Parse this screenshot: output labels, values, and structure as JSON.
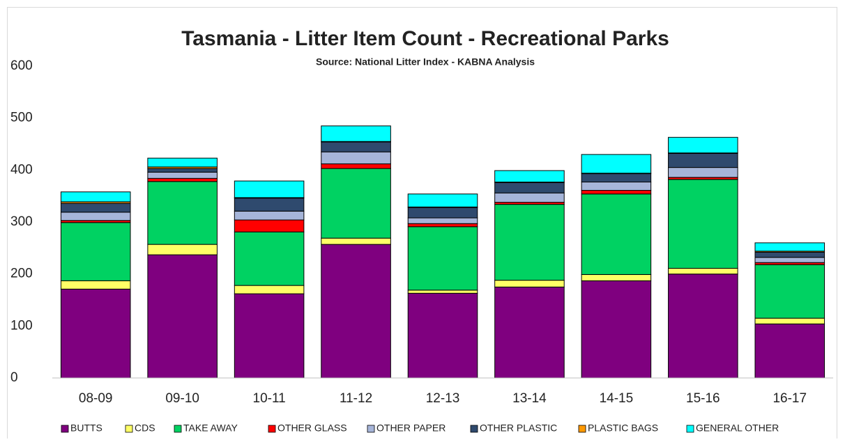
{
  "chart_data": {
    "type": "stacked_bar",
    "title": "Tasmania - Litter Item Count - Recreational Parks",
    "subtitle": "Source: National Litter Index - KABNA Analysis",
    "categories": [
      "08-09",
      "09-10",
      "10-11",
      "11-12",
      "12-13",
      "13-14",
      "14-15",
      "15-16",
      "16-17"
    ],
    "series": [
      {
        "name": "BUTTS",
        "color": "#7f007f",
        "values": [
          171,
          237,
          162,
          257,
          163,
          175,
          187,
          200,
          104
        ]
      },
      {
        "name": "CDS",
        "color": "#ffff66",
        "values": [
          16,
          20,
          16,
          12,
          6,
          13,
          12,
          11,
          11
        ]
      },
      {
        "name": "TAKE AWAY",
        "color": "#00d262",
        "values": [
          112,
          121,
          103,
          134,
          122,
          146,
          155,
          171,
          103
        ]
      },
      {
        "name": "OTHER GLASS",
        "color": "#ff0000",
        "values": [
          4,
          6,
          23,
          9,
          6,
          4,
          7,
          4,
          4
        ]
      },
      {
        "name": "OTHER PAPER",
        "color": "#a6b5d9",
        "values": [
          16,
          12,
          17,
          23,
          11,
          18,
          16,
          19,
          10
        ]
      },
      {
        "name": "OTHER PLASTIC",
        "color": "#2f4a6e",
        "values": [
          17,
          7,
          25,
          19,
          20,
          20,
          16,
          27,
          10
        ]
      },
      {
        "name": "PLASTIC BAGS",
        "color": "#ff9900",
        "values": [
          3,
          3,
          1,
          1,
          1,
          1,
          1,
          1,
          2
        ]
      },
      {
        "name": "GENERAL OTHER",
        "color": "#00ffff",
        "values": [
          19,
          17,
          32,
          30,
          25,
          22,
          36,
          30,
          16
        ]
      }
    ],
    "ylim": [
      0,
      600
    ],
    "yticks": [
      0,
      100,
      200,
      300,
      400,
      500,
      600
    ],
    "grid": false,
    "legend": "bottom"
  }
}
